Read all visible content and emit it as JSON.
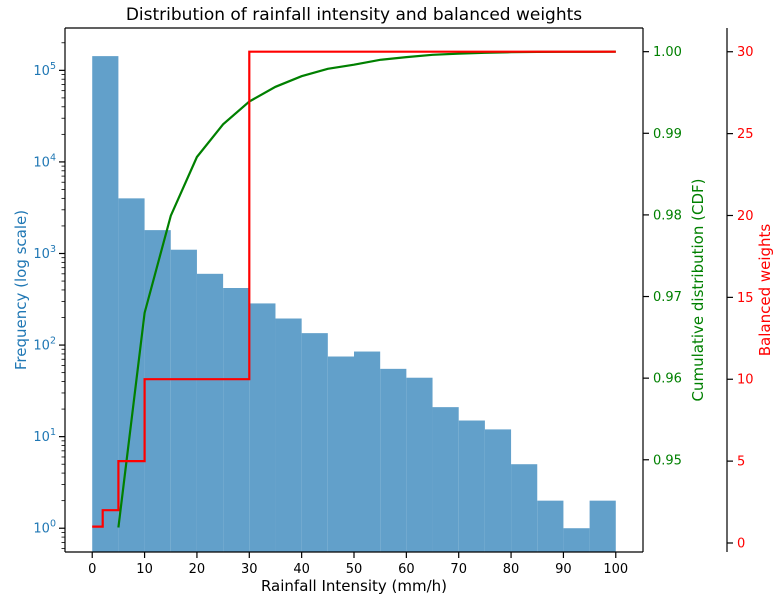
{
  "figure": {
    "background": "#ffffff"
  },
  "chart_data": {
    "type": "combo",
    "title": "Distribution of rainfall intensity and balanced weights",
    "xlabel": "Rainfall Intensity (mm/h)",
    "x_ticks": [
      0,
      10,
      20,
      30,
      40,
      50,
      60,
      70,
      80,
      90,
      100
    ],
    "xlim": [
      -5.2,
      105.2
    ],
    "grid": false,
    "legend": "none",
    "series": [
      {
        "name": "frequency_histogram",
        "type": "bar",
        "axis": "left",
        "ylabel": "Frequency (log scale)",
        "yscale": "log",
        "ylim": [
          0.55,
          290000
        ],
        "y_ticks_exponents": [
          0,
          1,
          2,
          3,
          4,
          5
        ],
        "color": "#62a0ca",
        "label_color": "#1f77b4",
        "bin_edges": [
          0,
          5,
          10,
          15,
          20,
          25,
          30,
          35,
          40,
          45,
          50,
          55,
          60,
          65,
          70,
          75,
          80,
          85,
          90,
          95,
          100
        ],
        "counts": [
          143000,
          4000,
          1800,
          1100,
          600,
          420,
          285,
          195,
          135,
          75,
          85,
          55,
          44,
          21,
          15,
          12,
          5,
          2,
          1,
          2
        ]
      },
      {
        "name": "cumulative_distribution",
        "type": "line",
        "axis": "right1",
        "ylabel": "Cumulative distribution (CDF)",
        "ylim": [
          0.9387,
          1.0029
        ],
        "y_ticks": [
          0.95,
          0.96,
          0.97,
          0.98,
          0.99,
          1.0
        ],
        "color": "#008000",
        "x": [
          5,
          10,
          15,
          20,
          25,
          30,
          35,
          40,
          45,
          50,
          55,
          60,
          65,
          70,
          75,
          80,
          85,
          90,
          95,
          100
        ],
        "y": [
          0.9417,
          0.968,
          0.9799,
          0.9871,
          0.9911,
          0.9939,
          0.9957,
          0.997,
          0.9979,
          0.9984,
          0.999,
          0.99933,
          0.99962,
          0.99976,
          0.99986,
          0.99993,
          0.99997,
          0.99998,
          0.99999,
          1.0
        ]
      },
      {
        "name": "balanced_weights",
        "type": "step",
        "axis": "right2",
        "ylabel": "Balanced weights",
        "ylim": [
          -0.55,
          31.45
        ],
        "y_ticks": [
          0,
          5,
          10,
          15,
          20,
          25,
          30
        ],
        "color": "#ff0000",
        "step_x": [
          0,
          2,
          5,
          10,
          30,
          100
        ],
        "levels": [
          1,
          2,
          5,
          10,
          30
        ]
      }
    ]
  }
}
